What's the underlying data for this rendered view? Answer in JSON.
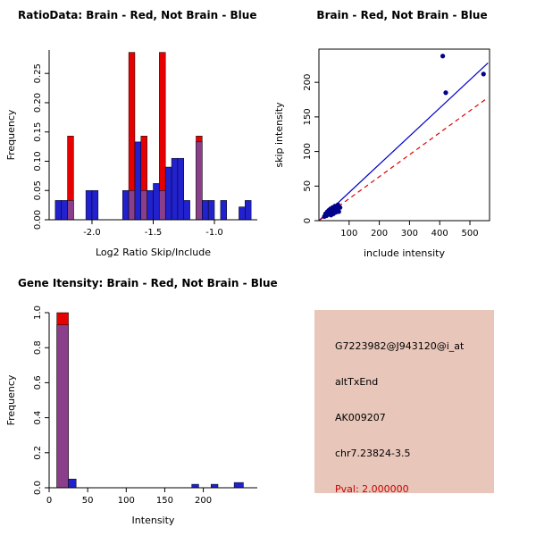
{
  "figure": {
    "background": "#ffffff"
  },
  "panels": {
    "info": {
      "background": "#e8c6ba",
      "lines": [
        {
          "text": "G7223982@J943120@i_at",
          "color": "#000000"
        },
        {
          "text": "altTxEnd",
          "color": "#000000"
        },
        {
          "text": "AK009207",
          "color": "#000000"
        },
        {
          "text": "chr7.23824-3.5",
          "color": "#000000"
        },
        {
          "text": "Pval: 2.000000",
          "color": "#cc0000"
        }
      ]
    }
  },
  "chart_data": [
    {
      "id": "ratio-histogram",
      "type": "bar",
      "title": "RatioData: Brain - Red, Not Brain - Blue",
      "xlabel": "Log2 Ratio Skip/Include",
      "ylabel": "Frequency",
      "xlim": [
        -2.35,
        -0.65
      ],
      "ylim": [
        0,
        0.29
      ],
      "legend": "Brain = red, Not Brain = blue, overlap = purple",
      "xticks": [
        {
          "v": -2.0,
          "label": "-2.0"
        },
        {
          "v": -1.5,
          "label": "-1.5"
        },
        {
          "v": -1.0,
          "label": "-1.0"
        }
      ],
      "yticks": [
        {
          "v": 0,
          "label": "0.00"
        },
        {
          "v": 0.05,
          "label": "0.05"
        },
        {
          "v": 0.1,
          "label": "0.10"
        },
        {
          "v": 0.15,
          "label": "0.15"
        },
        {
          "v": 0.2,
          "label": "0.20"
        },
        {
          "v": 0.25,
          "label": "0.25"
        }
      ],
      "colors": {
        "brain": "#e60000",
        "not_brain": "#2121cd",
        "overlap": "#8b3f8b"
      },
      "bars": [
        {
          "x": -2.3,
          "w": 0.05,
          "h": 0.033,
          "series": "not_brain"
        },
        {
          "x": -2.25,
          "w": 0.05,
          "h": 0.033,
          "series": "not_brain"
        },
        {
          "x": -2.2,
          "w": 0.05,
          "h": 0.143,
          "series": "brain"
        },
        {
          "x": -2.2,
          "w": 0.05,
          "h": 0.033,
          "series": "overlap"
        },
        {
          "x": -2.05,
          "w": 0.05,
          "h": 0.05,
          "series": "not_brain"
        },
        {
          "x": -2.0,
          "w": 0.05,
          "h": 0.05,
          "series": "not_brain"
        },
        {
          "x": -1.75,
          "w": 0.05,
          "h": 0.05,
          "series": "not_brain"
        },
        {
          "x": -1.7,
          "w": 0.05,
          "h": 0.286,
          "series": "brain"
        },
        {
          "x": -1.7,
          "w": 0.05,
          "h": 0.05,
          "series": "overlap"
        },
        {
          "x": -1.65,
          "w": 0.05,
          "h": 0.133,
          "series": "not_brain"
        },
        {
          "x": -1.6,
          "w": 0.05,
          "h": 0.143,
          "series": "brain"
        },
        {
          "x": -1.6,
          "w": 0.05,
          "h": 0.05,
          "series": "overlap"
        },
        {
          "x": -1.55,
          "w": 0.05,
          "h": 0.05,
          "series": "not_brain"
        },
        {
          "x": -1.5,
          "w": 0.05,
          "h": 0.062,
          "series": "not_brain"
        },
        {
          "x": -1.45,
          "w": 0.05,
          "h": 0.286,
          "series": "brain"
        },
        {
          "x": -1.45,
          "w": 0.05,
          "h": 0.05,
          "series": "overlap"
        },
        {
          "x": -1.4,
          "w": 0.05,
          "h": 0.09,
          "series": "not_brain"
        },
        {
          "x": -1.35,
          "w": 0.05,
          "h": 0.105,
          "series": "not_brain"
        },
        {
          "x": -1.3,
          "w": 0.05,
          "h": 0.105,
          "series": "not_brain"
        },
        {
          "x": -1.25,
          "w": 0.05,
          "h": 0.033,
          "series": "not_brain"
        },
        {
          "x": -1.15,
          "w": 0.05,
          "h": 0.143,
          "series": "brain"
        },
        {
          "x": -1.15,
          "w": 0.05,
          "h": 0.133,
          "series": "overlap"
        },
        {
          "x": -1.1,
          "w": 0.05,
          "h": 0.033,
          "series": "not_brain"
        },
        {
          "x": -1.05,
          "w": 0.05,
          "h": 0.033,
          "series": "not_brain"
        },
        {
          "x": -0.95,
          "w": 0.05,
          "h": 0.033,
          "series": "not_brain"
        },
        {
          "x": -0.8,
          "w": 0.05,
          "h": 0.022,
          "series": "not_brain"
        },
        {
          "x": -0.75,
          "w": 0.05,
          "h": 0.033,
          "series": "not_brain"
        }
      ]
    },
    {
      "id": "intensity-scatter",
      "type": "scatter",
      "title": "Brain - Red, Not Brain - Blue",
      "xlabel": "include intensity",
      "ylabel": "skip intensity",
      "xlim": [
        0,
        565
      ],
      "ylim": [
        0,
        248
      ],
      "xticks": [
        {
          "v": 100,
          "label": "100"
        },
        {
          "v": 200,
          "label": "200"
        },
        {
          "v": 300,
          "label": "300"
        },
        {
          "v": 400,
          "label": "400"
        },
        {
          "v": 500,
          "label": "500"
        }
      ],
      "yticks": [
        {
          "v": 0,
          "label": "0"
        },
        {
          "v": 50,
          "label": "50"
        },
        {
          "v": 100,
          "label": "100"
        },
        {
          "v": 150,
          "label": "150"
        },
        {
          "v": 200,
          "label": "200"
        }
      ],
      "point_color": "#00008b",
      "points": [
        [
          18,
          6
        ],
        [
          22,
          10
        ],
        [
          25,
          7
        ],
        [
          28,
          13
        ],
        [
          30,
          9
        ],
        [
          33,
          15
        ],
        [
          35,
          11
        ],
        [
          38,
          17
        ],
        [
          40,
          8
        ],
        [
          42,
          13
        ],
        [
          45,
          19
        ],
        [
          48,
          10
        ],
        [
          50,
          15
        ],
        [
          53,
          21
        ],
        [
          56,
          12
        ],
        [
          60,
          17
        ],
        [
          63,
          23
        ],
        [
          66,
          13
        ],
        [
          70,
          19
        ],
        [
          410,
          238
        ],
        [
          420,
          185
        ],
        [
          545,
          212
        ]
      ],
      "lines": [
        {
          "name": "not_brain_fit",
          "color": "#0000cd",
          "style": "solid",
          "x": [
            0,
            560
          ],
          "y": [
            0,
            228
          ]
        },
        {
          "name": "brain_fit",
          "color": "#dd0000",
          "style": "dashed",
          "x": [
            0,
            560
          ],
          "y": [
            0,
            178
          ]
        }
      ]
    },
    {
      "id": "gene-intensity-histogram",
      "type": "bar",
      "title": "Gene Itensity: Brain - Red, Not Brain - Blue",
      "xlabel": "Intensity",
      "ylabel": "Frequency",
      "xlim": [
        0,
        270
      ],
      "ylim": [
        0,
        1.0
      ],
      "legend": "Brain = red, Not Brain = blue, overlap = purple",
      "xticks": [
        {
          "v": 0,
          "label": "0"
        },
        {
          "v": 50,
          "label": "50"
        },
        {
          "v": 100,
          "label": "100"
        },
        {
          "v": 150,
          "label": "150"
        },
        {
          "v": 200,
          "label": "200"
        }
      ],
      "yticks": [
        {
          "v": 0,
          "label": "0.0"
        },
        {
          "v": 0.2,
          "label": "0.2"
        },
        {
          "v": 0.4,
          "label": "0.4"
        },
        {
          "v": 0.6,
          "label": "0.6"
        },
        {
          "v": 0.8,
          "label": "0.8"
        },
        {
          "v": 1.0,
          "label": "1.0"
        }
      ],
      "colors": {
        "brain": "#e60000",
        "not_brain": "#2121cd",
        "overlap": "#8b3f8b"
      },
      "bars": [
        {
          "x": 10,
          "w": 15,
          "h": 1.0,
          "series": "brain"
        },
        {
          "x": 10,
          "w": 15,
          "h": 0.93,
          "series": "overlap"
        },
        {
          "x": 25,
          "w": 10,
          "h": 0.05,
          "series": "not_brain"
        },
        {
          "x": 185,
          "w": 9,
          "h": 0.02,
          "series": "not_brain"
        },
        {
          "x": 210,
          "w": 9,
          "h": 0.02,
          "series": "not_brain"
        },
        {
          "x": 240,
          "w": 12,
          "h": 0.03,
          "series": "not_brain"
        }
      ]
    }
  ]
}
